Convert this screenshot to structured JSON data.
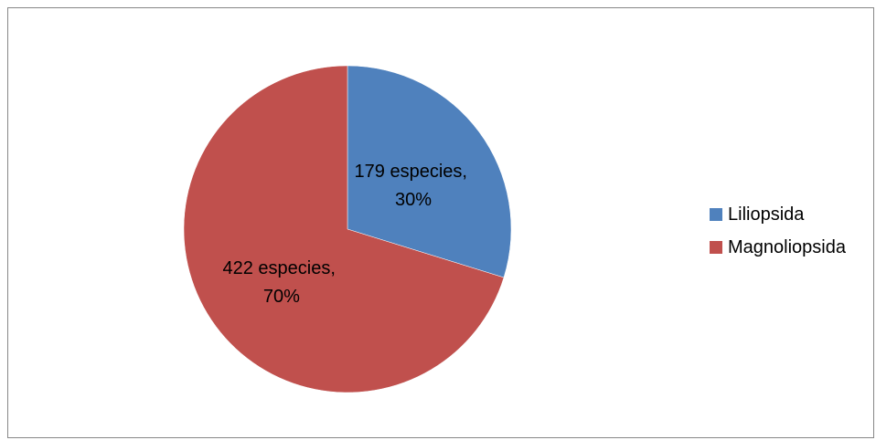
{
  "chart_data": {
    "type": "pie",
    "categories": [
      "Liliopsida",
      "Magnoliopsida"
    ],
    "values": [
      179,
      422
    ],
    "percentages": [
      30,
      70
    ],
    "colors": [
      "#4F81BD",
      "#C0504D"
    ],
    "data_labels": [
      {
        "line1": "179 especies,",
        "line2": "30%"
      },
      {
        "line1": "422 especies,",
        "line2": "70%"
      }
    ],
    "start_angle_deg": 0,
    "direction": "clockwise",
    "legend_position": "right",
    "title": ""
  }
}
